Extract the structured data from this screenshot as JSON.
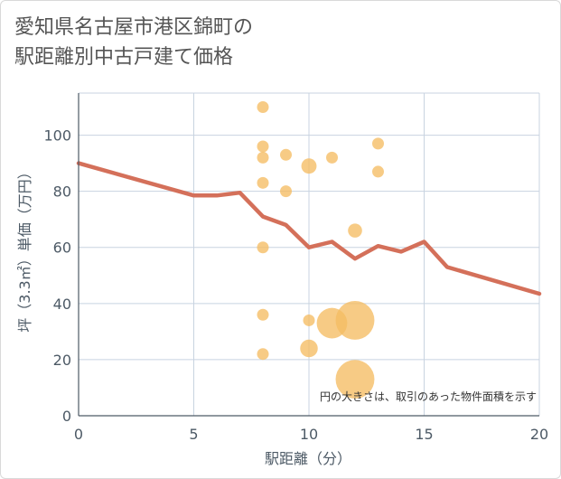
{
  "title_line1": "愛知県名古屋市港区錦町の",
  "title_line2": "駅距離別中古戸建て価格",
  "note": "円の大きさは、取引のあった物件面積を示す",
  "chart_data": {
    "type": "scatter",
    "title": "愛知県名古屋市港区錦町の駅距離別中古戸建て価格",
    "xlabel": "駅距離（分）",
    "ylabel": "坪（3.3㎡）単価（万円）",
    "xlim": [
      0,
      20
    ],
    "ylim": [
      0,
      115
    ],
    "x_ticks": [
      0,
      5,
      10,
      15,
      20
    ],
    "y_ticks": [
      0,
      20,
      40,
      60,
      80,
      100
    ],
    "grid": true,
    "colors": {
      "bubble": "#f5bd63",
      "line": "#d4705a",
      "grid": "#c8d3e0",
      "axis": "#4d5a66"
    },
    "scatter": [
      {
        "x": 8,
        "y": 110,
        "size": 1
      },
      {
        "x": 8,
        "y": 96,
        "size": 1
      },
      {
        "x": 8,
        "y": 92,
        "size": 1
      },
      {
        "x": 8,
        "y": 83,
        "size": 1
      },
      {
        "x": 8,
        "y": 60,
        "size": 1
      },
      {
        "x": 8,
        "y": 36,
        "size": 1
      },
      {
        "x": 8,
        "y": 22,
        "size": 1
      },
      {
        "x": 9,
        "y": 93,
        "size": 1
      },
      {
        "x": 9,
        "y": 80,
        "size": 1
      },
      {
        "x": 10,
        "y": 89,
        "size": 1.3
      },
      {
        "x": 10,
        "y": 34,
        "size": 1
      },
      {
        "x": 10,
        "y": 24,
        "size": 1.5
      },
      {
        "x": 11,
        "y": 92,
        "size": 1
      },
      {
        "x": 11,
        "y": 33,
        "size": 2.6
      },
      {
        "x": 12,
        "y": 66,
        "size": 1.2
      },
      {
        "x": 12,
        "y": 34,
        "size": 3.3
      },
      {
        "x": 12,
        "y": 13,
        "size": 3.3
      },
      {
        "x": 13,
        "y": 97,
        "size": 1
      },
      {
        "x": 13,
        "y": 87,
        "size": 1
      }
    ],
    "trend": [
      {
        "x": 0,
        "y": 90
      },
      {
        "x": 5,
        "y": 78.5
      },
      {
        "x": 6,
        "y": 78.5
      },
      {
        "x": 7,
        "y": 79.5
      },
      {
        "x": 8,
        "y": 71
      },
      {
        "x": 9,
        "y": 68
      },
      {
        "x": 10,
        "y": 60
      },
      {
        "x": 11,
        "y": 62
      },
      {
        "x": 12,
        "y": 56
      },
      {
        "x": 13,
        "y": 60.5
      },
      {
        "x": 14,
        "y": 58.5
      },
      {
        "x": 15,
        "y": 62
      },
      {
        "x": 16,
        "y": 53
      },
      {
        "x": 20,
        "y": 43.5
      }
    ]
  }
}
